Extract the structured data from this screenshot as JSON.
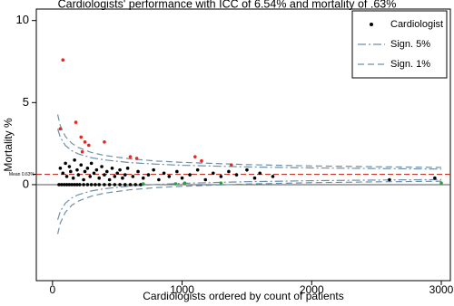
{
  "chart_data": {
    "type": "scatter",
    "title": "Cardiologists' performance with ICC of 6.54% and mortality of .63%",
    "xlabel": "Cardiologists ordered by count of patients",
    "ylabel": "Mortality %",
    "xlim": [
      -125,
      3070
    ],
    "ylim": [
      -5.85,
      10.7
    ],
    "xticks": [
      0,
      1000,
      2000,
      3000
    ],
    "yticks": [
      0,
      5,
      10
    ],
    "mean": 0.63,
    "mean_label": "Mean 0.63%",
    "mean_color": "#c0392b",
    "legend": "top-right",
    "series": [
      {
        "name": "Cardiologist",
        "type": "scatter",
        "color": "#000000",
        "x": [
          50,
          70,
          90,
          110,
          130,
          150,
          170,
          190,
          210,
          240,
          270,
          300,
          330,
          360,
          400,
          440,
          480,
          520,
          560,
          600,
          640,
          680,
          60,
          80,
          100,
          110,
          130,
          140,
          160,
          170,
          190,
          200,
          220,
          240,
          250,
          270,
          290,
          300,
          320,
          340,
          360,
          380,
          400,
          420,
          440,
          460,
          480,
          500,
          520,
          540,
          560,
          580,
          620,
          660,
          700,
          740,
          780,
          820,
          860,
          900,
          960,
          1000,
          1060,
          1120,
          1180,
          1240,
          1300,
          1360,
          1420,
          1500,
          1560,
          1600,
          1700,
          2600,
          2950
        ],
        "values": [
          0,
          0,
          0,
          0,
          0,
          0,
          0,
          0,
          0,
          0,
          0,
          0,
          0,
          0,
          0,
          0,
          0,
          0,
          0,
          0,
          0,
          0,
          1.0,
          0.7,
          1.3,
          0.5,
          1.1,
          0.8,
          0.4,
          1.5,
          0.9,
          0.6,
          1.2,
          0.3,
          0.8,
          1.0,
          0.5,
          1.3,
          0.7,
          0.9,
          0.4,
          1.1,
          0.6,
          0.8,
          0.3,
          1.0,
          0.5,
          0.7,
          0.9,
          0.4,
          0.6,
          1.0,
          0.5,
          0.8,
          0.4,
          0.6,
          0.9,
          0.3,
          0.7,
          0.5,
          0.8,
          0.4,
          0.6,
          0.9,
          0.3,
          0.7,
          0.5,
          0.8,
          0.6,
          0.9,
          0.4,
          0.7,
          0.5,
          0.3,
          0.4
        ]
      },
      {
        "type": "scatter",
        "color": "#e8251f",
        "x": [
          80,
          60,
          180,
          220,
          250,
          280,
          230,
          400,
          600,
          650,
          1100,
          1150,
          1380
        ],
        "values": [
          7.6,
          3.4,
          3.8,
          2.9,
          2.6,
          2.4,
          2.0,
          2.6,
          1.7,
          1.6,
          1.7,
          1.45,
          1.2
        ]
      },
      {
        "type": "scatter",
        "color": "#2e9e3e",
        "x": [
          700,
          950,
          1020,
          1300,
          3000
        ],
        "values": [
          0.05,
          0.05,
          0.1,
          0.1,
          0.1
        ]
      },
      {
        "name": "Sign. 5%",
        "type": "line",
        "color": "#6f8fa8",
        "dash": "9 3 2 3",
        "x": [
          40,
          60,
          100,
          150,
          200,
          300,
          400,
          600,
          800,
          1000,
          1500,
          2000,
          2500,
          3000
        ],
        "values": [
          3.4,
          2.89,
          2.38,
          2.06,
          1.87,
          1.64,
          1.51,
          1.34,
          1.25,
          1.18,
          1.08,
          1.02,
          0.98,
          0.95
        ],
        "lower": [
          -2.14,
          -1.63,
          -1.12,
          -0.8,
          -0.61,
          -0.38,
          -0.25,
          -0.08,
          0.01,
          0.08,
          0.18,
          0.24,
          0.28,
          0.31
        ]
      },
      {
        "name": "Sign. 1%",
        "type": "line",
        "color": "#6f8fa8",
        "dash": "7 4",
        "x": [
          40,
          60,
          100,
          150,
          200,
          300,
          400,
          600,
          800,
          1000,
          1500,
          2000,
          2500,
          3000
        ],
        "values": [
          4.27,
          3.6,
          2.93,
          2.51,
          2.26,
          1.96,
          1.78,
          1.57,
          1.44,
          1.36,
          1.22,
          1.14,
          1.09,
          1.05
        ],
        "lower": [
          -3.01,
          -2.34,
          -1.67,
          -1.25,
          -1.0,
          -0.7,
          -0.52,
          -0.31,
          -0.18,
          -0.1,
          0.04,
          0.12,
          0.17,
          0.21
        ]
      }
    ]
  }
}
